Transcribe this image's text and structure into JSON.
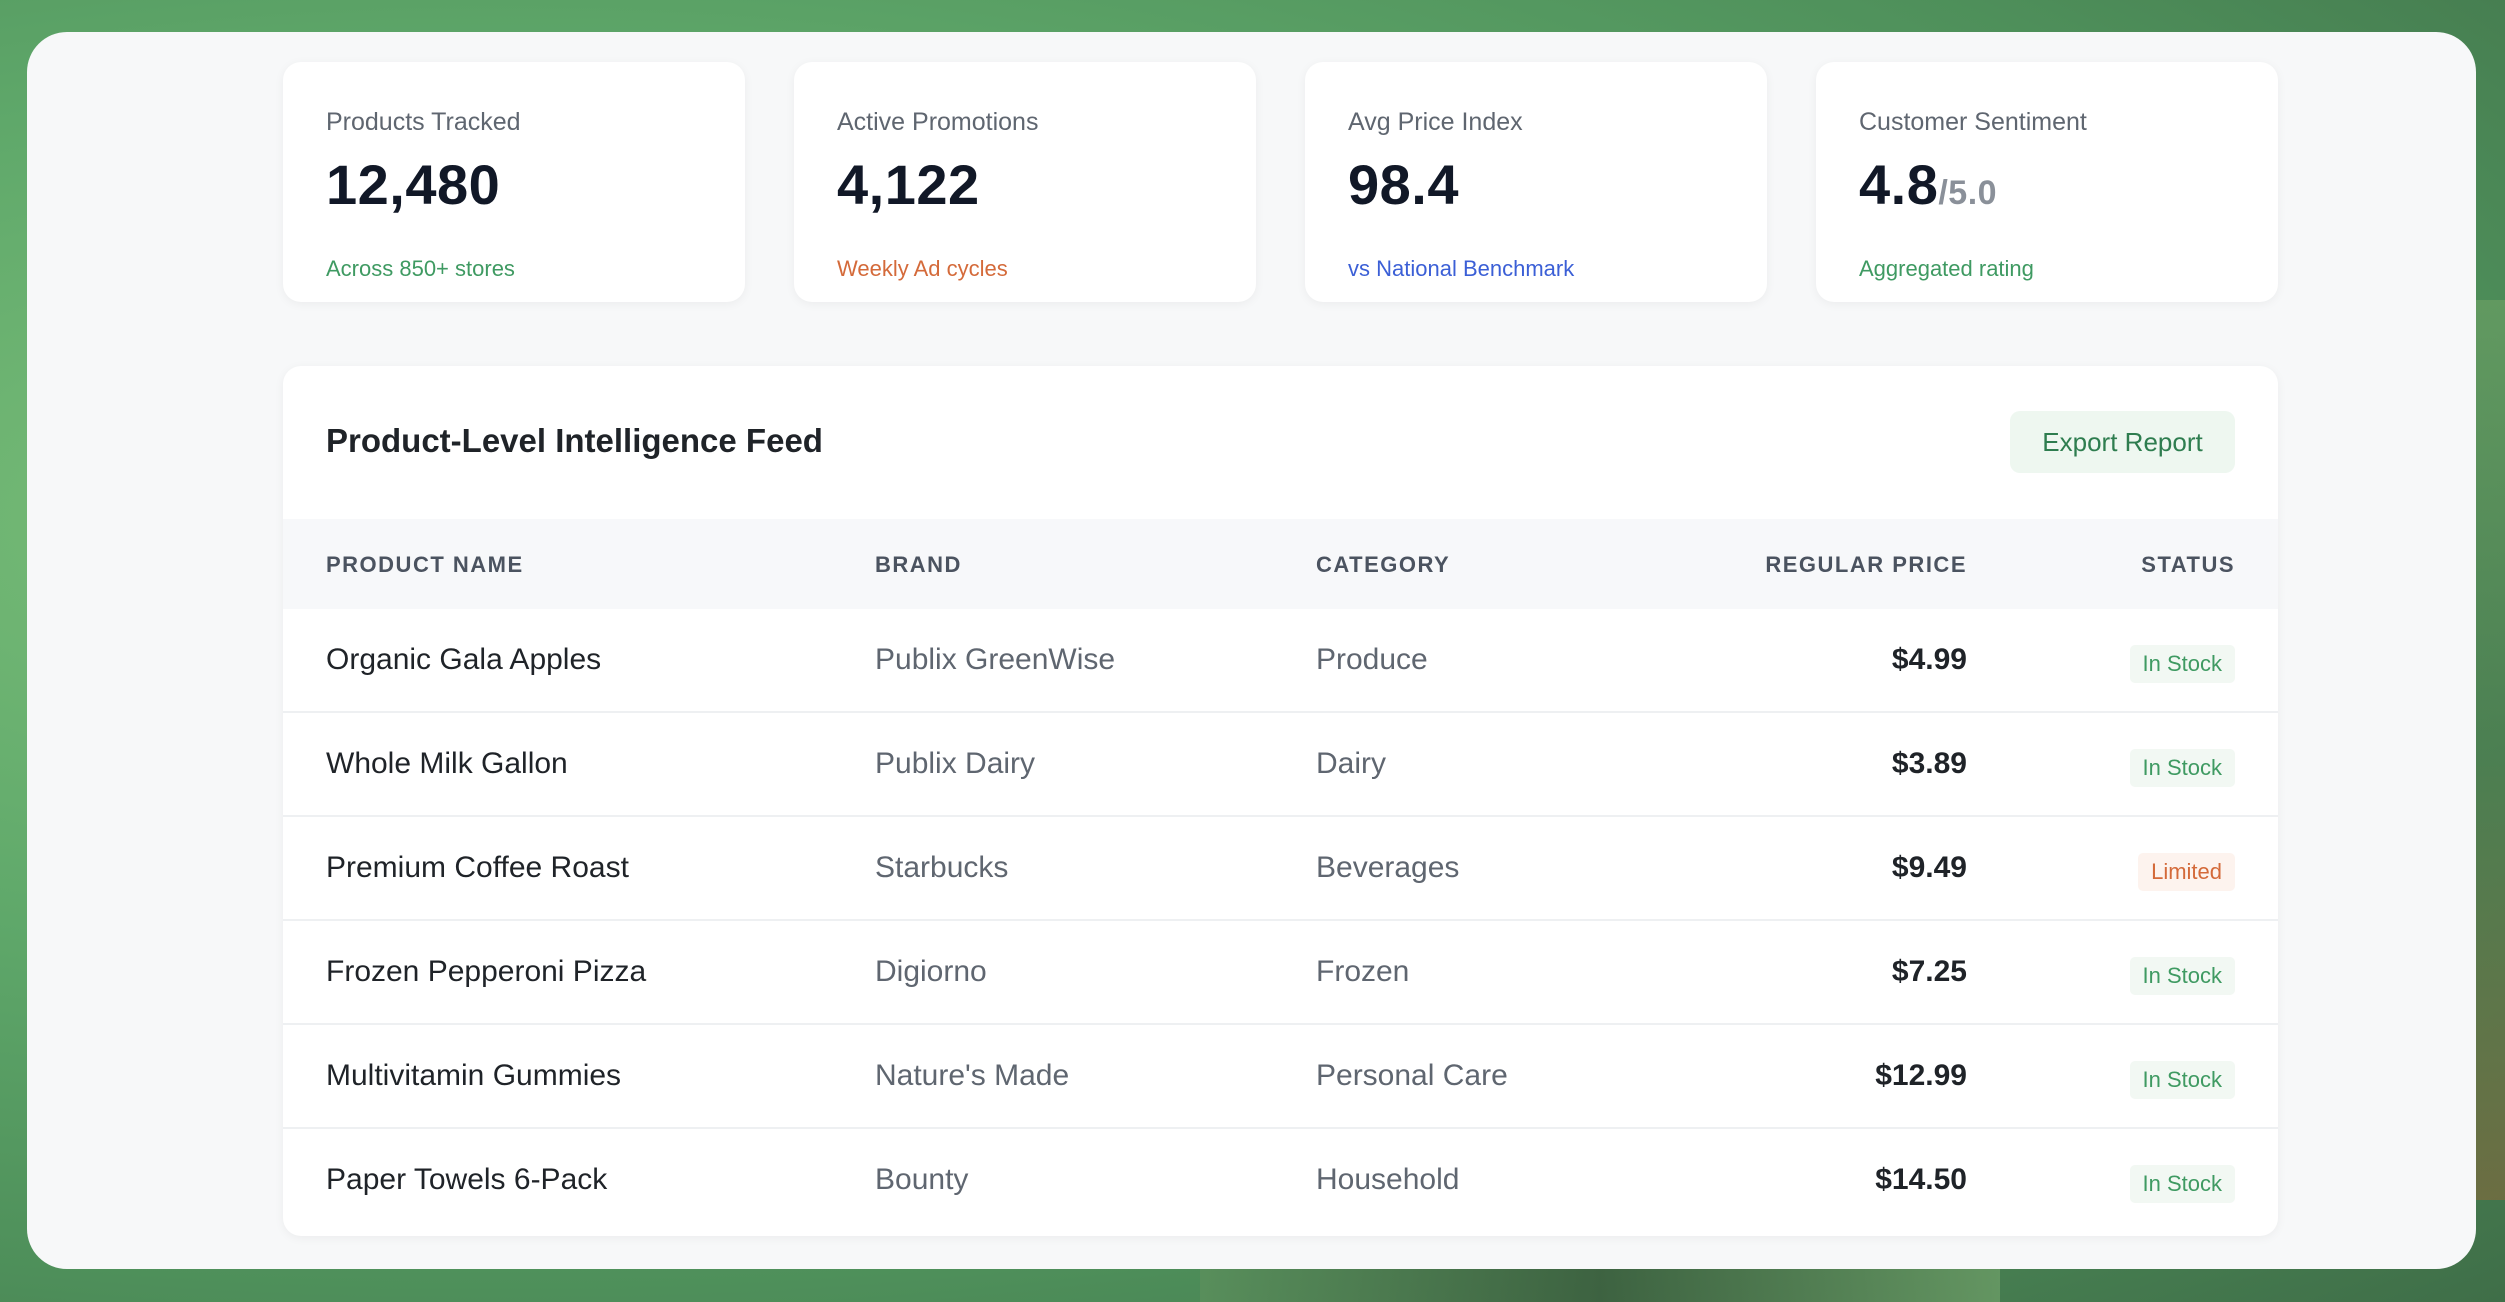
{
  "stats": [
    {
      "label": "Products Tracked",
      "value": "12,480",
      "suffix": "",
      "sub": "Across 850+ stores",
      "sub_color": "#3f9a62"
    },
    {
      "label": "Active Promotions",
      "value": "4,122",
      "suffix": "",
      "sub": "Weekly Ad cycles",
      "sub_color": "#d46a3a"
    },
    {
      "label": "Avg Price Index",
      "value": "98.4",
      "suffix": "",
      "sub": "vs National Benchmark",
      "sub_color": "#3b5fd6"
    },
    {
      "label": "Customer Sentiment",
      "value": "4.8",
      "suffix": "/5.0",
      "sub": "Aggregated rating",
      "sub_color": "#3f9a62"
    }
  ],
  "feed": {
    "title": "Product-Level Intelligence Feed",
    "export_label": "Export Report",
    "columns": [
      "PRODUCT NAME",
      "BRAND",
      "CATEGORY",
      "REGULAR PRICE",
      "STATUS"
    ],
    "rows": [
      {
        "name": "Organic Gala Apples",
        "brand": "Publix GreenWise",
        "category": "Produce",
        "price": "$4.99",
        "status": "In Stock"
      },
      {
        "name": "Whole Milk Gallon",
        "brand": "Publix Dairy",
        "category": "Dairy",
        "price": "$3.89",
        "status": "In Stock"
      },
      {
        "name": "Premium Coffee Roast",
        "brand": "Starbucks",
        "category": "Beverages",
        "price": "$9.49",
        "status": "Limited"
      },
      {
        "name": "Frozen Pepperoni Pizza",
        "brand": "Digiorno",
        "category": "Frozen",
        "price": "$7.25",
        "status": "In Stock"
      },
      {
        "name": "Multivitamin Gummies",
        "brand": "Nature's Made",
        "category": "Personal Care",
        "price": "$12.99",
        "status": "In Stock"
      },
      {
        "name": "Paper Towels 6-Pack",
        "brand": "Bounty",
        "category": "Household",
        "price": "$14.50",
        "status": "In Stock"
      }
    ]
  },
  "colors": {
    "in_stock": "#3f9a62",
    "limited": "#d46a3a",
    "accent_green": "#2e7d4f"
  }
}
